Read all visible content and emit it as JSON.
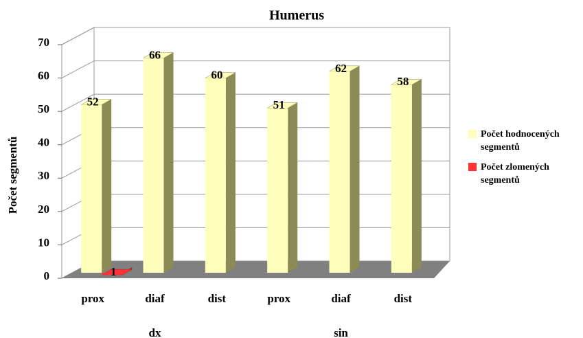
{
  "chart_data": {
    "type": "bar3d",
    "title": "Humerus",
    "ylabel": "Počet segmentů",
    "categories": [
      "prox",
      "diaf",
      "dist",
      "prox",
      "diaf",
      "dist"
    ],
    "groups": [
      "dx",
      "sin"
    ],
    "series": [
      {
        "name": "Počet hodnocených segmentů",
        "color": "#ffffbb",
        "side": "#8c8a55",
        "values": [
          52,
          66,
          60,
          51,
          62,
          58
        ]
      },
      {
        "name": "Počet zlomených segmentů",
        "color": "#ff3333",
        "side": "#b02020",
        "values": [
          1,
          null,
          null,
          null,
          null,
          null
        ]
      }
    ],
    "ylim": [
      0,
      70
    ],
    "yticks": [
      0,
      10,
      20,
      30,
      40,
      50,
      60,
      70
    ],
    "grid": true,
    "legend": "right"
  }
}
